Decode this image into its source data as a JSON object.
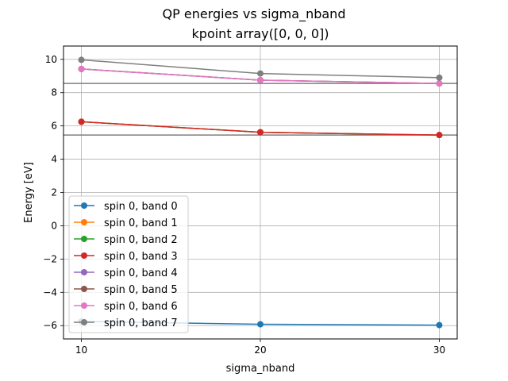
{
  "chart_data": {
    "type": "line",
    "title": "QP energies vs sigma_nband",
    "subtitle": "kpoint array([0, 0, 0])",
    "xlabel": "sigma_nband",
    "ylabel": "Energy [eV]",
    "x": [
      10,
      20,
      30
    ],
    "xticks": [
      "10",
      "20",
      "30"
    ],
    "xlim": [
      9.0,
      31.0
    ],
    "ylim": [
      -6.8,
      10.8
    ],
    "yticks": [
      -6,
      -4,
      -2,
      0,
      2,
      4,
      6,
      8,
      10
    ],
    "ytick_labels": [
      "−6",
      "−4",
      "−2",
      "0",
      "2",
      "4",
      "6",
      "8",
      "10"
    ],
    "grid": true,
    "legend_position": "lower-left",
    "series": [
      {
        "name": "spin 0, band 0",
        "color": "#1f77b4",
        "values": [
          -5.75,
          -5.92,
          -5.97
        ]
      },
      {
        "name": "spin 0, band 1",
        "color": "#ff7f0e",
        "values": [
          6.25,
          5.62,
          5.45
        ]
      },
      {
        "name": "spin 0, band 2",
        "color": "#2ca02c",
        "values": [
          6.25,
          5.62,
          5.45
        ]
      },
      {
        "name": "spin 0, band 3",
        "color": "#d62728",
        "values": [
          6.25,
          5.62,
          5.45
        ]
      },
      {
        "name": "spin 0, band 4",
        "color": "#9467bd",
        "values": [
          9.42,
          8.75,
          8.55
        ]
      },
      {
        "name": "spin 0, band 5",
        "color": "#8c564b",
        "values": [
          9.42,
          8.75,
          8.55
        ]
      },
      {
        "name": "spin 0, band 6",
        "color": "#e377c2",
        "values": [
          9.42,
          8.75,
          8.55
        ]
      },
      {
        "name": "spin 0, band 7",
        "color": "#7f7f7f",
        "values": [
          9.97,
          9.15,
          8.9
        ]
      }
    ],
    "hlines": [
      {
        "y": 5.45,
        "color": "#7f7f7f"
      },
      {
        "y": 8.55,
        "color": "#7f7f7f"
      }
    ]
  }
}
